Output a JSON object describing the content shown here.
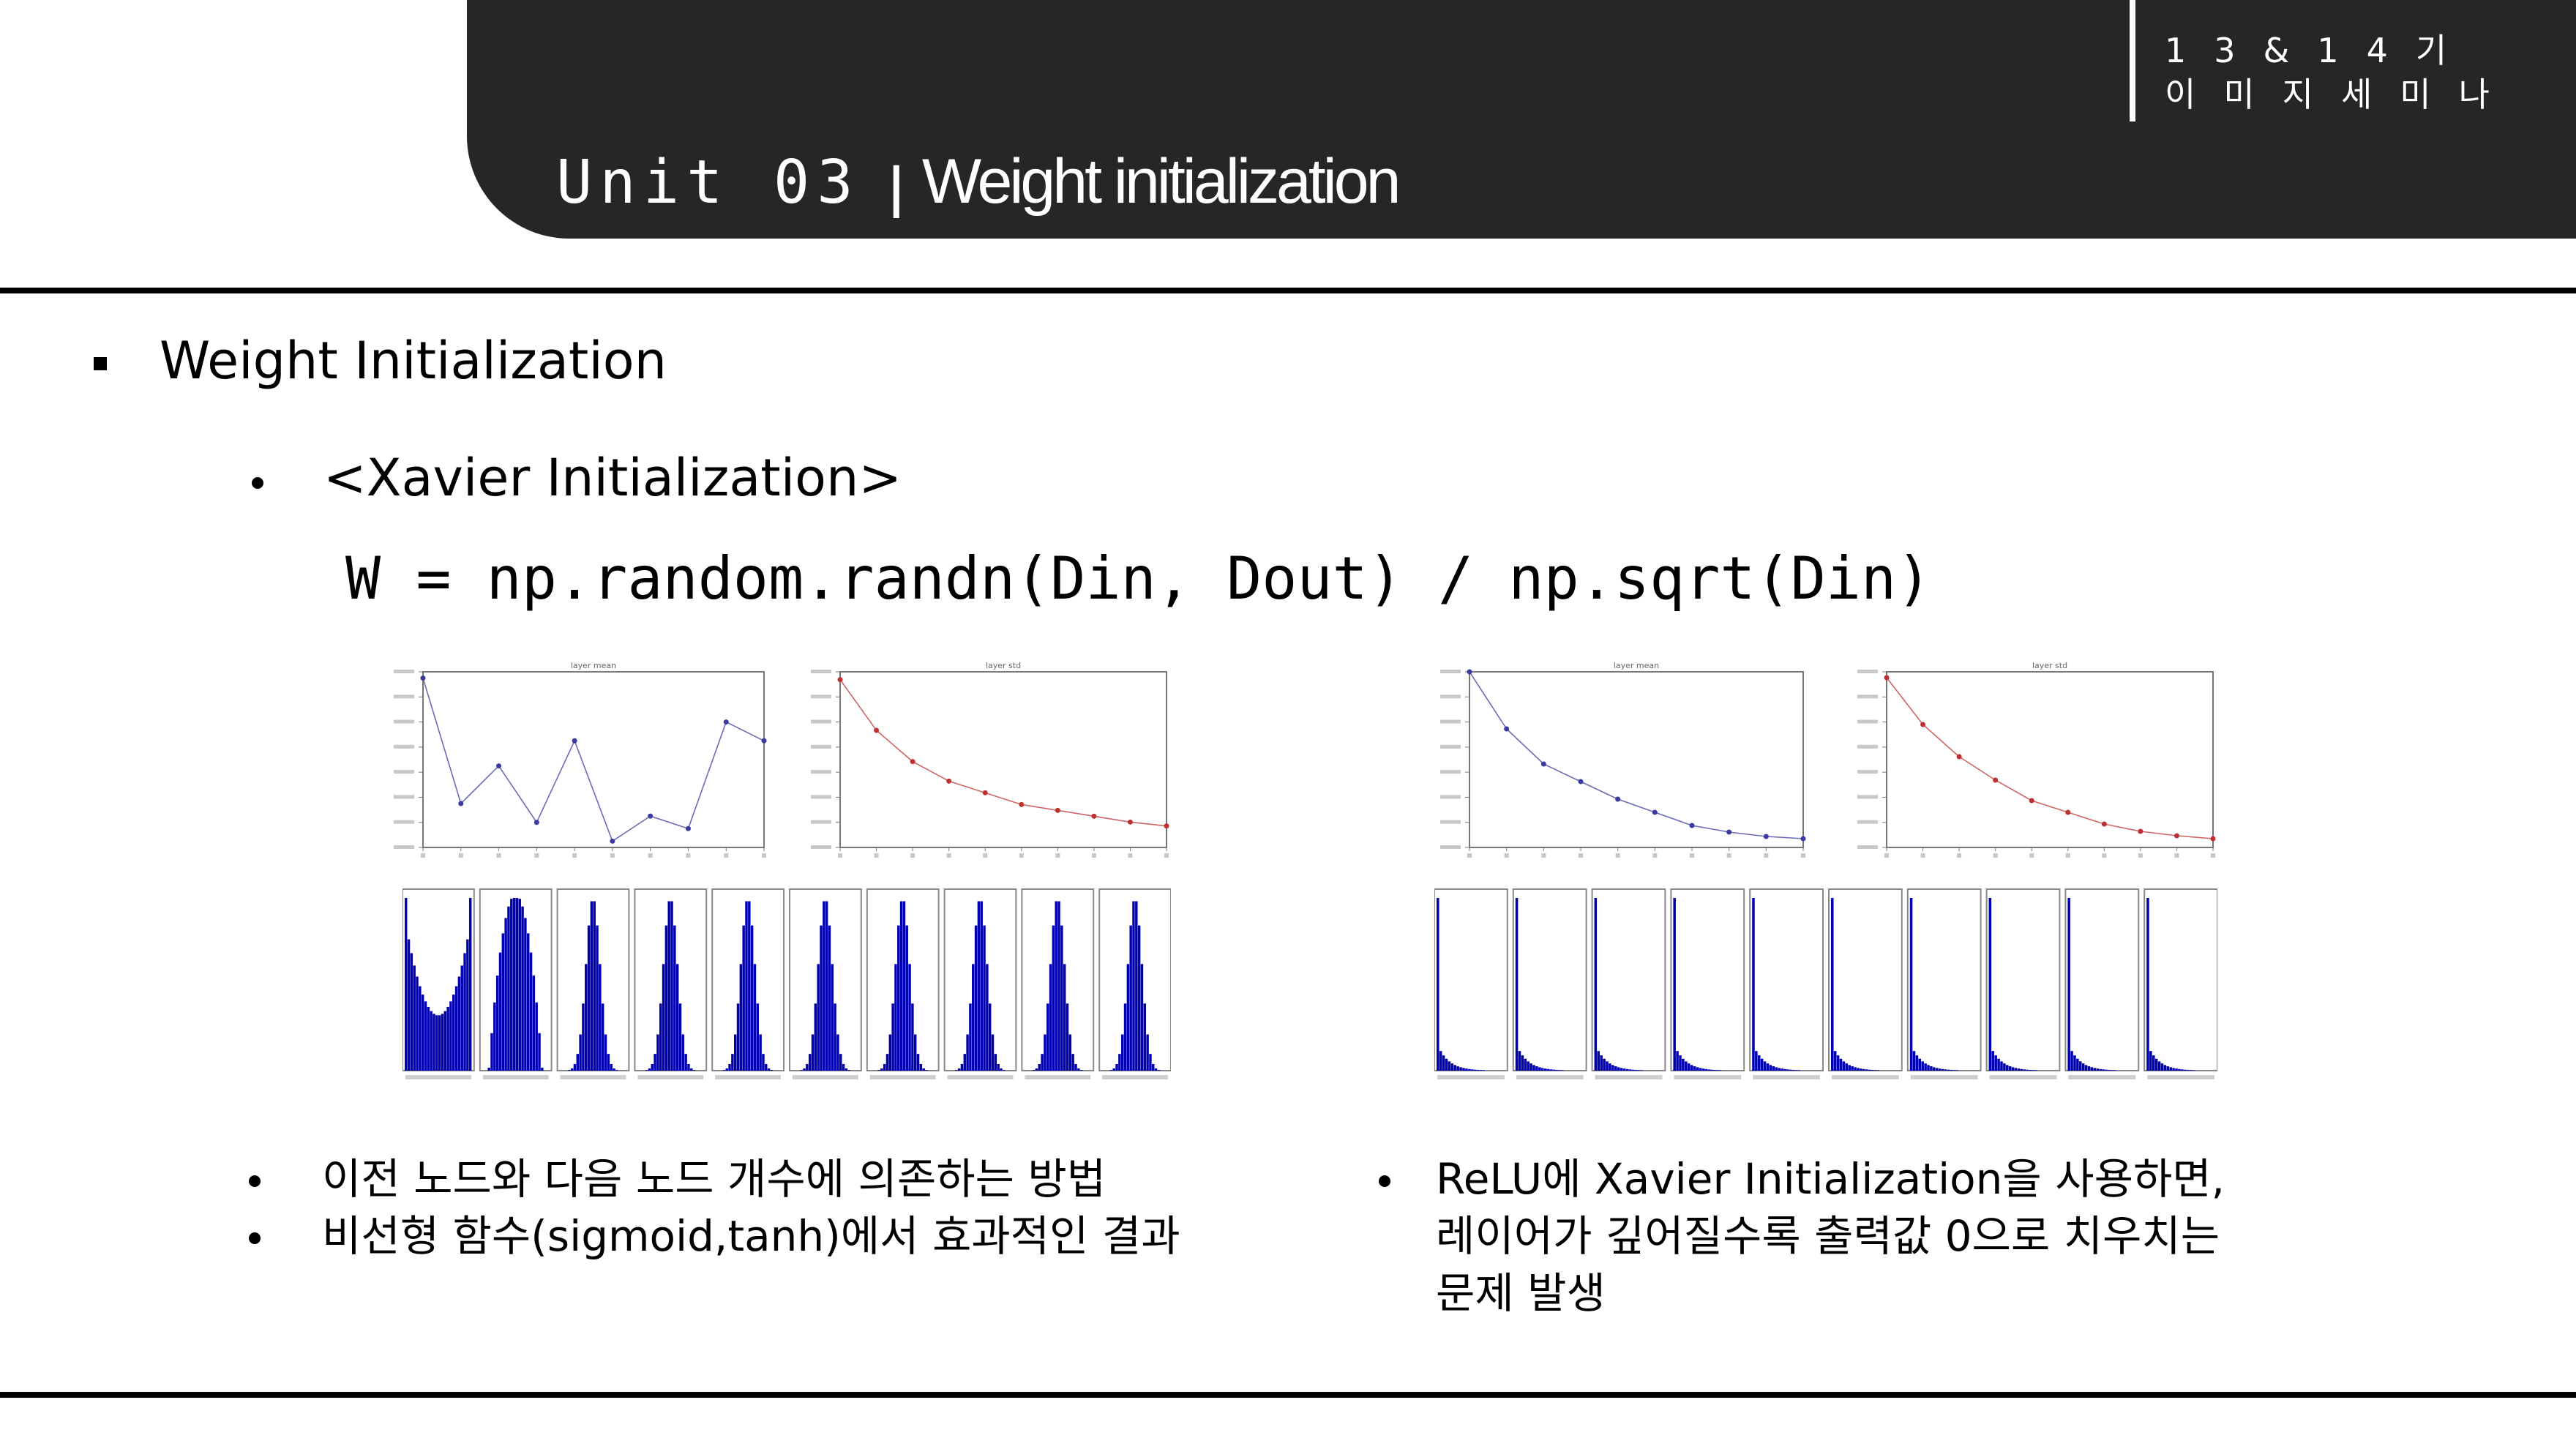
{
  "header": {
    "unit": "Unit 03",
    "separator": "|",
    "title": "Weight initialization",
    "tag_line1": "13&14기",
    "tag_line2": "이미지세미나"
  },
  "bullets": {
    "level1": "Weight Initialization",
    "level2": "<Xavier Initialization>"
  },
  "code": "W = np.random.randn(Din, Dout) / np.sqrt(Din)",
  "notes": {
    "left": [
      "이전 노드와 다음 노드 개수에 의존하는 방법",
      "비선형 함수(sigmoid,tanh)에서 효과적인 결과"
    ],
    "right": [
      "ReLU에 Xavier Initialization을 사용하면,",
      "레이어가 깊어질수록 출력값 0으로 치우치는",
      "문제 발생"
    ]
  },
  "chart_data": [
    {
      "type": "line",
      "title": "layer mean",
      "x": [
        1,
        2,
        3,
        4,
        5,
        6,
        7,
        8,
        9,
        10
      ],
      "values": [
        0.0011,
        -0.0009,
        -0.0003,
        -0.0012,
        0.0001,
        -0.0015,
        -0.0011,
        -0.0013,
        0.0004,
        0.0001
      ],
      "ylim": [
        -0.0016,
        0.0012
      ],
      "color": "#3a3aa0"
    },
    {
      "type": "line",
      "title": "layer std",
      "x": [
        1,
        2,
        3,
        4,
        5,
        6,
        7,
        8,
        9,
        10
      ],
      "values": [
        0.63,
        0.5,
        0.42,
        0.37,
        0.34,
        0.31,
        0.295,
        0.28,
        0.265,
        0.255
      ],
      "ylim": [
        0.2,
        0.65
      ],
      "color": "#c03030"
    },
    {
      "type": "line",
      "title": "layer mean",
      "x": [
        1,
        2,
        3,
        4,
        5,
        6,
        7,
        8,
        9,
        10
      ],
      "values": [
        0.4,
        0.27,
        0.19,
        0.15,
        0.11,
        0.08,
        0.05,
        0.035,
        0.025,
        0.02
      ],
      "ylim": [
        0,
        0.4
      ],
      "color": "#3a3aa0"
    },
    {
      "type": "line",
      "title": "layer std",
      "x": [
        1,
        2,
        3,
        4,
        5,
        6,
        7,
        8,
        9,
        10
      ],
      "values": [
        0.58,
        0.42,
        0.31,
        0.23,
        0.16,
        0.12,
        0.08,
        0.055,
        0.04,
        0.03
      ],
      "ylim": [
        0,
        0.6
      ],
      "color": "#c03030"
    }
  ],
  "histograms": {
    "left": [
      "u",
      "sat",
      "bell",
      "bell",
      "bell",
      "bell",
      "bell",
      "bell",
      "bell",
      "bell"
    ],
    "right": [
      "relu",
      "relu",
      "relu",
      "relu",
      "relu",
      "relu",
      "relu",
      "relu",
      "relu",
      "relu"
    ],
    "color": "#0000b0"
  }
}
